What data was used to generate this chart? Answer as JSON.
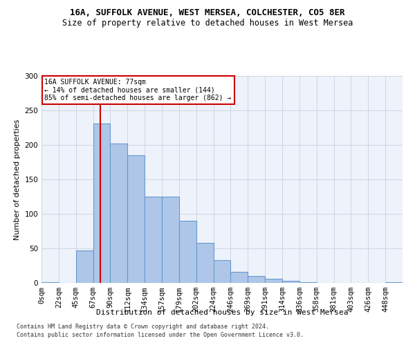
{
  "title1": "16A, SUFFOLK AVENUE, WEST MERSEA, COLCHESTER, CO5 8ER",
  "title2": "Size of property relative to detached houses in West Mersea",
  "xlabel": "Distribution of detached houses by size in West Mersea",
  "ylabel": "Number of detached properties",
  "footer1": "Contains HM Land Registry data © Crown copyright and database right 2024.",
  "footer2": "Contains public sector information licensed under the Open Government Licence v3.0.",
  "annotation_line1": "16A SUFFOLK AVENUE: 77sqm",
  "annotation_line2": "← 14% of detached houses are smaller (144)",
  "annotation_line3": "85% of semi-detached houses are larger (862) →",
  "bar_heights": [
    1,
    0,
    47,
    231,
    202,
    185,
    125,
    125,
    90,
    58,
    33,
    16,
    10,
    6,
    3,
    1,
    0,
    0,
    0,
    0,
    1
  ],
  "bin_labels": [
    "0sqm",
    "22sqm",
    "45sqm",
    "67sqm",
    "90sqm",
    "112sqm",
    "134sqm",
    "157sqm",
    "179sqm",
    "202sqm",
    "224sqm",
    "246sqm",
    "269sqm",
    "291sqm",
    "314sqm",
    "336sqm",
    "358sqm",
    "381sqm",
    "403sqm",
    "426sqm",
    "448sqm"
  ],
  "bar_color": "#aec6e8",
  "bar_edge_color": "#6699cc",
  "line_color": "#cc0000",
  "annotation_box_edge": "#cc0000",
  "background_color": "#eef2fa",
  "grid_color": "#c8d0e0",
  "ylim": [
    0,
    300
  ],
  "yticks": [
    0,
    50,
    100,
    150,
    200,
    250,
    300
  ],
  "property_sqm": 77,
  "bin_width": 22.5
}
